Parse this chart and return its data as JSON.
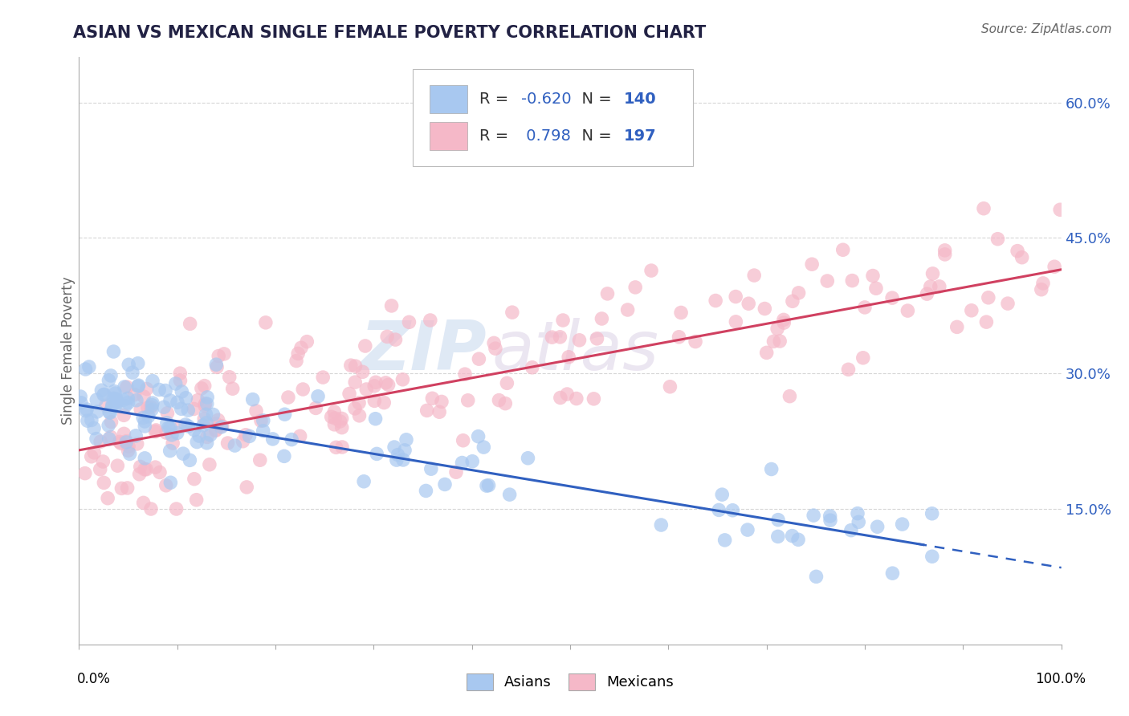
{
  "title": "ASIAN VS MEXICAN SINGLE FEMALE POVERTY CORRELATION CHART",
  "source": "Source: ZipAtlas.com",
  "ylabel": "Single Female Poverty",
  "xlim": [
    0.0,
    1.0
  ],
  "ylim": [
    0.0,
    0.65
  ],
  "yticks": [
    0.15,
    0.3,
    0.45,
    0.6
  ],
  "ytick_labels": [
    "15.0%",
    "30.0%",
    "45.0%",
    "60.0%"
  ],
  "xticks": [
    0.0,
    0.1,
    0.2,
    0.3,
    0.4,
    0.5,
    0.6,
    0.7,
    0.8,
    0.9,
    1.0
  ],
  "legend_r_asian": "-0.620",
  "legend_n_asian": "140",
  "legend_r_mexican": "0.798",
  "legend_n_mexican": "197",
  "asian_color": "#A8C8F0",
  "mexican_color": "#F5B8C8",
  "asian_line_color": "#3060C0",
  "mexican_line_color": "#D04060",
  "title_color": "#222244",
  "source_color": "#666666",
  "watermark_zip": "ZIP",
  "watermark_atlas": "atlas",
  "background_color": "#FFFFFF",
  "grid_color": "#CCCCCC",
  "legend_text_color": "#3060C0",
  "legend_label_color": "#333333"
}
